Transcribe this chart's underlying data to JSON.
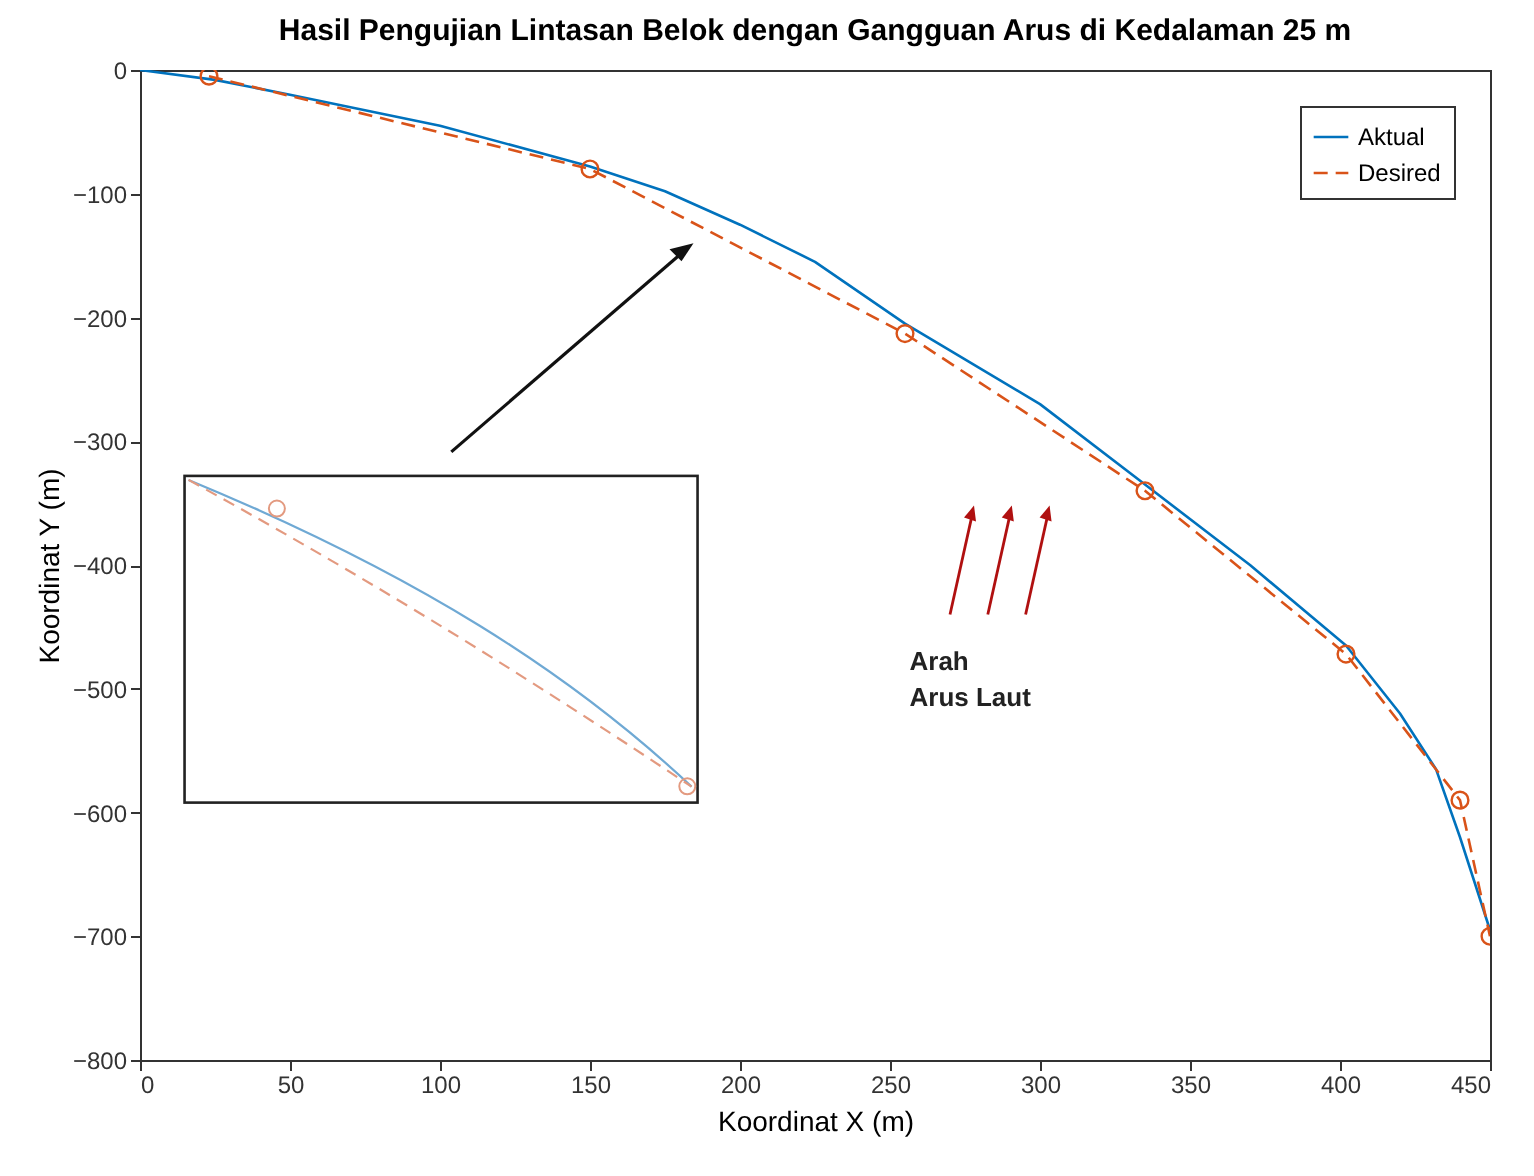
{
  "chart_data": {
    "type": "line",
    "title": "Hasil Pengujian Lintasan Belok dengan Gangguan Arus di Kedalaman 25 m",
    "xlabel": "Koordinat X (m)",
    "ylabel": "Koordinat Y (m)",
    "annotations": [
      "Arah\nArus Laut"
    ],
    "xlim": [
      0,
      450
    ],
    "xticks": [
      0,
      50,
      100,
      150,
      200,
      250,
      300,
      350,
      400,
      450
    ],
    "ylim": [
      -800,
      0
    ],
    "yticks": [
      -800,
      -700,
      -600,
      -500,
      -400,
      -300,
      -200,
      -100,
      0
    ],
    "grid": false,
    "legend": "top right",
    "series": [
      {
        "name": "Aktual",
        "color": "#0072bd",
        "line_style": "solid",
        "marker": "none",
        "x": [
          0,
          25,
          50,
          100,
          150,
          175,
          200,
          225,
          255,
          300,
          335,
          370,
          402,
          420,
          432,
          440,
          450
        ],
        "values": [
          0,
          -8,
          -20,
          -45,
          -78,
          -98,
          -125,
          -155,
          -205,
          -270,
          -335,
          -400,
          -465,
          -520,
          -565,
          -620,
          -695
        ]
      },
      {
        "name": "Desired",
        "color": "#d95319",
        "line_style": "dashed",
        "marker": "circle",
        "x": [
          23,
          150,
          255,
          335,
          402,
          440,
          450
        ],
        "values": [
          -5,
          -80,
          -213,
          -340,
          -472,
          -590,
          -700
        ]
      }
    ]
  }
}
